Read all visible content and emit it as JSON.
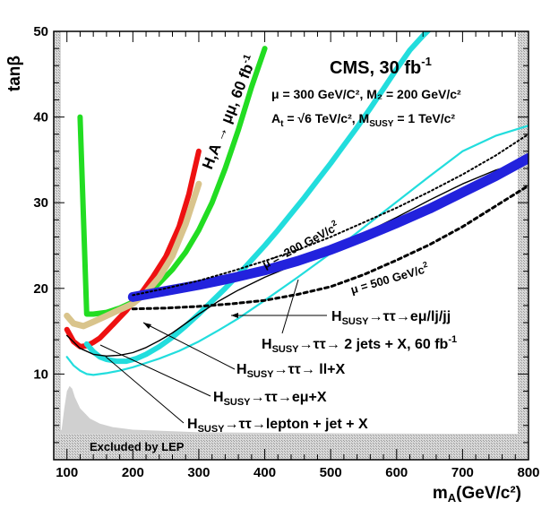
{
  "chart_data": {
    "type": "line",
    "title": "CMS, 30 fb",
    "title_sup": "-1",
    "params": {
      "line1": "μ = 300 GeV/C², M₂ = 200 GeV/c²",
      "line2_a": "A",
      "line2_a_sub": "t",
      "line2_b": " = √6 TeV/c², M",
      "line2_b_sub": "SUSY",
      "line2_c": " = 1 TeV/c²"
    },
    "xlabel": "m",
    "xlabel_sub": "A",
    "xlabel_rest": "(GeV/c²)",
    "ylabel": "tanβ",
    "xlim": [
      80,
      800
    ],
    "ylim": [
      0,
      50
    ],
    "x_ticks": [
      100,
      200,
      300,
      400,
      500,
      600,
      700,
      800
    ],
    "y_ticks": [
      10,
      20,
      30,
      40,
      50
    ],
    "excluded_label": "Excluded by LEP",
    "lep_boundary": [
      [
        80,
        3
      ],
      [
        92,
        3.5
      ],
      [
        96,
        6
      ],
      [
        100,
        8
      ],
      [
        104,
        8.6
      ],
      [
        108,
        8.3
      ],
      [
        112,
        7.3
      ],
      [
        120,
        6
      ],
      [
        135,
        4.8
      ],
      [
        150,
        4.2
      ],
      [
        170,
        3.8
      ],
      [
        200,
        3.5
      ],
      [
        300,
        3.2
      ],
      [
        500,
        3.1
      ],
      [
        800,
        3.0
      ]
    ],
    "series": [
      {
        "name": "H,A → μμ, 60 fb⁻¹",
        "color": "#22dd22",
        "width": 6,
        "x": [
          120,
          120,
          130,
          140,
          160,
          180,
          200,
          220,
          240,
          260,
          280,
          300,
          320,
          340,
          360,
          380,
          400
        ],
        "y": [
          40,
          40,
          17,
          17,
          17.2,
          17.7,
          18.4,
          19.4,
          20.6,
          22.2,
          24.2,
          26.8,
          30,
          34,
          38.5,
          43.5,
          48
        ]
      },
      {
        "name": "",
        "color": "#ee1111",
        "width": 6,
        "x": [
          100,
          110,
          120,
          130,
          140,
          150,
          160,
          170,
          180,
          190,
          200,
          215,
          230,
          250,
          270,
          285,
          300
        ],
        "y": [
          15.2,
          13.8,
          13.2,
          13.3,
          13.7,
          14.2,
          15,
          15.8,
          16.6,
          17.4,
          18.4,
          19.7,
          21.3,
          23.7,
          27.2,
          31,
          36
        ]
      },
      {
        "name": "",
        "color": "#d9c48c",
        "width": 7,
        "x": [
          100,
          110,
          125,
          140,
          160,
          180,
          200,
          220,
          240,
          260,
          280,
          300
        ],
        "y": [
          16.8,
          15.9,
          15.6,
          16.1,
          16.8,
          17.5,
          18.2,
          19.5,
          21.3,
          23.8,
          27.5,
          32.2
        ]
      },
      {
        "name": "H_SUSY → ττ → lepton + jet + X",
        "color": "#22dddd",
        "width": 6,
        "x": [
          130,
          140,
          150,
          160,
          175,
          190,
          205,
          220,
          240,
          260,
          280,
          300,
          320,
          340,
          360,
          380,
          400,
          420,
          440,
          460,
          480,
          500,
          520,
          540,
          560,
          580,
          600,
          620,
          640,
          660,
          680
        ],
        "y": [
          13.5,
          12.6,
          12,
          11.7,
          11.5,
          11.5,
          11.8,
          12.3,
          13.2,
          14.3,
          15.6,
          17,
          18.5,
          20,
          21.6,
          23.3,
          25,
          26.8,
          28.7,
          30.6,
          32.6,
          34.6,
          36.7,
          38.8,
          41,
          43.3,
          45.6,
          47.8,
          49.5,
          51,
          52.5
        ]
      },
      {
        "name": "H_SUSY → ττ → eμ + X",
        "color": "#000000",
        "width": 1.4,
        "x": [
          100,
          120,
          140,
          160,
          180,
          200,
          220,
          240,
          260,
          280,
          300,
          330,
          360,
          400,
          450,
          500,
          550,
          600,
          650,
          700,
          750,
          800
        ],
        "y": [
          14.5,
          13,
          12.3,
          12.1,
          12.2,
          12.5,
          13.1,
          13.9,
          14.8,
          15.9,
          17,
          18.5,
          19.8,
          21.3,
          22.9,
          24.6,
          26.4,
          28.3,
          30.3,
          32.2,
          33.8,
          35
        ]
      },
      {
        "name": "H_SUSY → ττ → ll + X",
        "color": "#22dddd",
        "width": 2.2,
        "x": [
          100,
          110,
          120,
          130,
          140,
          150,
          160,
          180,
          200,
          220,
          240,
          270,
          300,
          330,
          360,
          400,
          450,
          500,
          550,
          600,
          650,
          700,
          750,
          800
        ],
        "y": [
          12,
          11,
          10.4,
          10,
          9.9,
          10,
          10.1,
          10.4,
          10.8,
          11.3,
          11.8,
          12.7,
          13.8,
          15.1,
          16.5,
          18.6,
          21.3,
          24.1,
          27.1,
          30.1,
          33.1,
          36,
          37.8,
          39
        ]
      },
      {
        "name": "H_SUSY → ττ → 2 jets + X, 60 fb⁻¹",
        "color": "#2222dd",
        "width": 11,
        "x": [
          200,
          250,
          300,
          350,
          400,
          450,
          500,
          550,
          600,
          650,
          700,
          750,
          800
        ],
        "y": [
          19,
          19.7,
          20.4,
          21.2,
          22.1,
          23.2,
          24.5,
          26,
          27.6,
          29.3,
          31.2,
          33.1,
          35.2
        ]
      },
      {
        "name": "H_SUSY → ττ → eμ/lj/jj",
        "color": "#000000",
        "width": 2,
        "dash": "2,3",
        "x": [
          200,
          250,
          300,
          350,
          400,
          450,
          500,
          550,
          600,
          650,
          700,
          750,
          800
        ],
        "y": [
          19.2,
          20,
          20.9,
          22,
          23.2,
          24.5,
          26,
          27.7,
          29.4,
          31.3,
          33.3,
          35.5,
          38
        ]
      },
      {
        "name": "",
        "color": "#000000",
        "width": 3,
        "dash": "4,4",
        "x": [
          200,
          250,
          300,
          350,
          400,
          450,
          500,
          550,
          600,
          650,
          700,
          750,
          800
        ],
        "y": [
          17.6,
          17.7,
          17.9,
          18.2,
          18.6,
          19.3,
          20.2,
          21.6,
          23.3,
          25.1,
          27.2,
          29.6,
          32
        ]
      }
    ],
    "annotations": [
      {
        "main": "H,A",
        "arrow": " → μμ, 60 fb",
        "sup": "-1"
      },
      {
        "main": "μ = -200 GeV/c",
        "sup": "2"
      },
      {
        "main": "μ = 500 GeV/c",
        "sup": "2"
      },
      {
        "main": "H",
        "sub": "SUSY",
        "rest": "→ττ→eμ/lj/jj"
      },
      {
        "main": "H",
        "sub": "SUSY",
        "rest": "→ττ→ 2 jets + X, 60 fb",
        "sup": "-1"
      },
      {
        "main": "H",
        "sub": "SUSY",
        "rest": "→ττ→ ll+X"
      },
      {
        "main": "H",
        "sub": "SUSY",
        "rest": "→ττ→eμ+X"
      },
      {
        "main": "H",
        "sub": "SUSY",
        "rest": "→ττ→lepton + jet + X"
      }
    ]
  }
}
